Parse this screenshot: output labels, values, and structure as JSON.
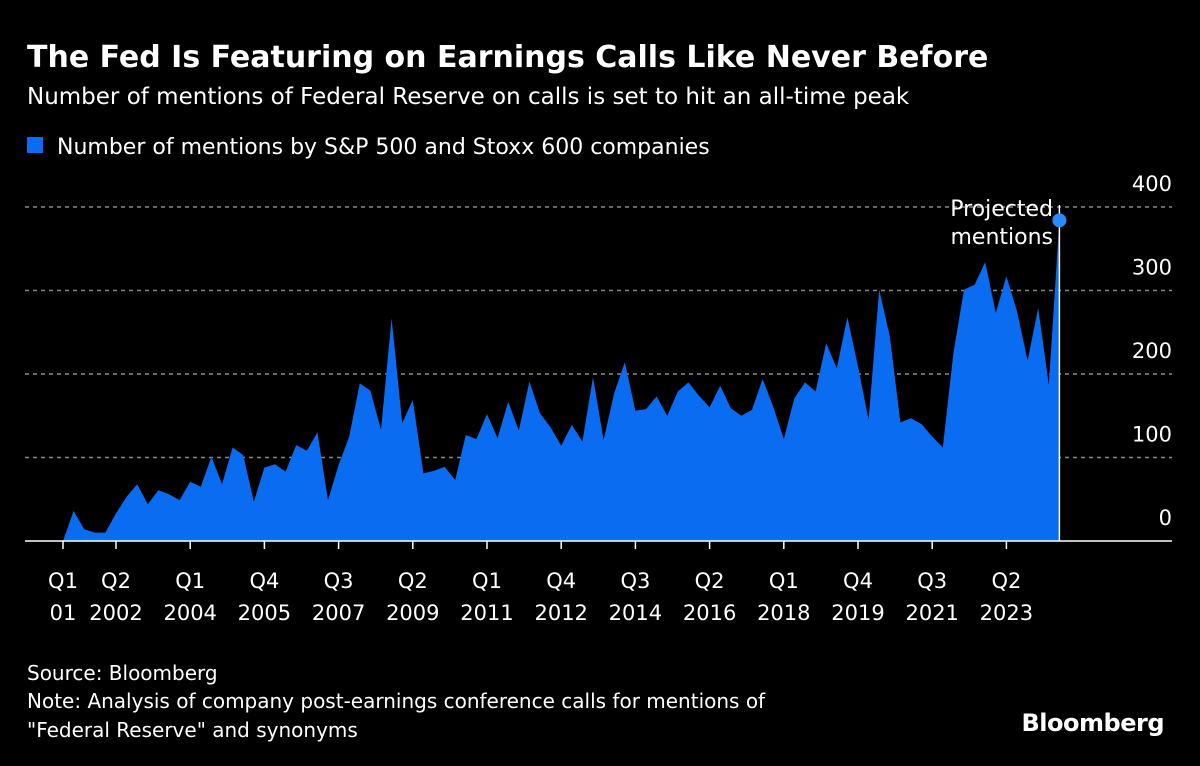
{
  "title": "The Fed Is Featuring on Earnings Calls Like Never Before",
  "subtitle": "Number of mentions of Federal Reserve on calls is set to hit an all-time peak",
  "source": "Source: Bloomberg",
  "note_line1": "Note: Analysis of company post-earnings conference calls for mentions of",
  "note_line2": "\"Federal Reserve\" and synonyms",
  "logo": "Bloomberg",
  "colors": {
    "series": "#0a6cf0",
    "projected_dot": "#2a8aff",
    "background": "#000000"
  },
  "chart_data": {
    "type": "area",
    "title": "The Fed Is Featuring on Earnings Calls Like Never Before",
    "legend": {
      "placement": "top-left",
      "entries": [
        "Number of mentions by S&P 500 and Stoxx 600 companies"
      ]
    },
    "grid": true,
    "ylim": [
      0,
      400
    ],
    "yticks": [
      "0",
      "100",
      "200",
      "300",
      "400"
    ],
    "xticks": [
      {
        "q": "Q1",
        "y": "01",
        "index": 0
      },
      {
        "q": "Q2",
        "y": "2002",
        "index": 5
      },
      {
        "q": "Q1",
        "y": "2004",
        "index": 12
      },
      {
        "q": "Q4",
        "y": "2005",
        "index": 19
      },
      {
        "q": "Q3",
        "y": "2007",
        "index": 26
      },
      {
        "q": "Q2",
        "y": "2009",
        "index": 33
      },
      {
        "q": "Q1",
        "y": "2011",
        "index": 40
      },
      {
        "q": "Q4",
        "y": "2012",
        "index": 47
      },
      {
        "q": "Q3",
        "y": "2014",
        "index": 54
      },
      {
        "q": "Q2",
        "y": "2016",
        "index": 61
      },
      {
        "q": "Q1",
        "y": "2018",
        "index": 68
      },
      {
        "q": "Q4",
        "y": "2019",
        "index": 75
      },
      {
        "q": "Q3",
        "y": "2021",
        "index": 82
      },
      {
        "q": "Q2",
        "y": "2023",
        "index": 89
      }
    ],
    "x_start": "Q1 2001",
    "x_end": "Q3 2024",
    "series": [
      {
        "name": "Number of mentions by S&P 500 and Stoxx 600 companies",
        "values": [
          0,
          36,
          14,
          10,
          10,
          33,
          53,
          68,
          44,
          61,
          56,
          49,
          71,
          65,
          101,
          68,
          112,
          103,
          47,
          88,
          92,
          83,
          115,
          108,
          130,
          49,
          91,
          125,
          189,
          180,
          133,
          267,
          141,
          169,
          81,
          84,
          89,
          73,
          127,
          122,
          152,
          123,
          167,
          132,
          191,
          153,
          136,
          114,
          139,
          119,
          196,
          121,
          177,
          214,
          156,
          158,
          173,
          150,
          179,
          190,
          174,
          160,
          186,
          159,
          150,
          157,
          194,
          161,
          122,
          171,
          190,
          179,
          237,
          207,
          268,
          209,
          145,
          301,
          245,
          142,
          147,
          140,
          125,
          112,
          225,
          301,
          307,
          334,
          273,
          317,
          275,
          216,
          279,
          187,
          384
        ]
      }
    ],
    "annotation": {
      "text_line1": "Projected",
      "text_line2": "mentions",
      "point": "Q3 2024",
      "value": 384
    }
  }
}
